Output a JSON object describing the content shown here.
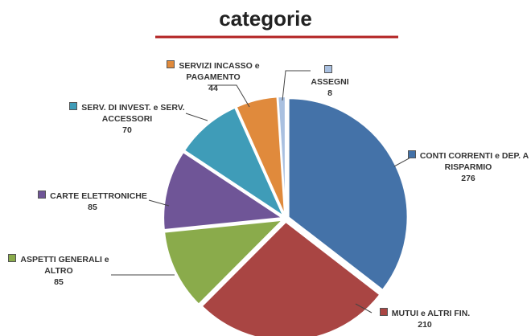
{
  "chart_data": {
    "type": "pie",
    "title": "categorie",
    "categories": [
      "CONTI CORRENTI e DEP. A RISPARMIO",
      "MUTUI e ALTRI FIN.",
      "ASPETTI GENERALI e ALTRO",
      "CARTE ELETTRONICHE",
      "SERV. DI INVEST. e SERV. ACCESSORI",
      "SERVIZI INCASSO e PAGAMENTO",
      "ASSEGNI"
    ],
    "values": [
      276,
      210,
      85,
      85,
      70,
      44,
      8
    ],
    "colors": [
      "#4472a8",
      "#a94543",
      "#8aab4b",
      "#6f5597",
      "#3f9cb8",
      "#e08a3c",
      "#a9c0e0"
    ]
  }
}
